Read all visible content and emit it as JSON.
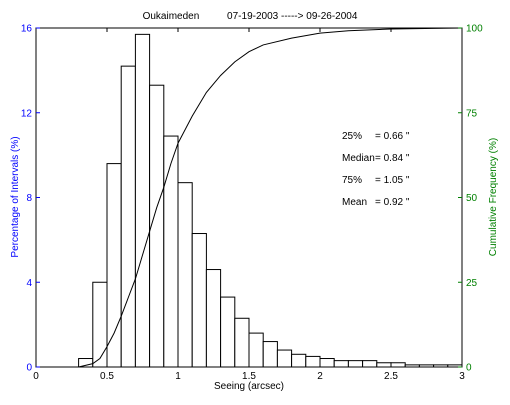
{
  "chart_data": {
    "type": "bar",
    "title": "Oukaimeden          07-19-2003 -----> 09-26-2004",
    "xlabel": "Seeing (arcsec)",
    "ylabel": "Percentage of Intervals (%)",
    "y2label": "Cumulative Frequency (%)",
    "xlim": [
      0,
      3
    ],
    "ylim": [
      0,
      16
    ],
    "y2lim": [
      0,
      100
    ],
    "x_ticks": [
      "0",
      "0.5",
      "1",
      "1.5",
      "2",
      "2.5",
      "3"
    ],
    "y_ticks": [
      "0",
      "4",
      "8",
      "12",
      "16"
    ],
    "y2_ticks": [
      "0",
      "25",
      "50",
      "75",
      "100"
    ],
    "grid": false,
    "colors": {
      "left_axis": "#0000ff",
      "right_axis": "#008000",
      "bars": "#000000",
      "curve": "#000000"
    },
    "series": [
      {
        "type": "bar",
        "bin_width": 0.1,
        "x": [
          0.35,
          0.45,
          0.55,
          0.65,
          0.75,
          0.85,
          0.95,
          1.05,
          1.15,
          1.25,
          1.35,
          1.45,
          1.55,
          1.65,
          1.75,
          1.85,
          1.95,
          2.05,
          2.15,
          2.25,
          2.35,
          2.45,
          2.55,
          2.65,
          2.75,
          2.85,
          2.95
        ],
        "values": [
          0.4,
          4.0,
          9.6,
          14.2,
          15.7,
          13.3,
          10.9,
          8.7,
          6.3,
          4.6,
          3.3,
          2.3,
          1.6,
          1.2,
          0.8,
          0.6,
          0.5,
          0.4,
          0.3,
          0.3,
          0.3,
          0.2,
          0.2,
          0.1,
          0.1,
          0.1,
          0.1
        ]
      },
      {
        "type": "line",
        "axis": "right",
        "x": [
          0.3,
          0.4,
          0.45,
          0.5,
          0.55,
          0.6,
          0.65,
          0.7,
          0.75,
          0.8,
          0.85,
          0.9,
          0.95,
          1.0,
          1.1,
          1.2,
          1.3,
          1.4,
          1.5,
          1.6,
          1.8,
          2.0,
          2.2,
          2.5,
          2.8,
          3.0
        ],
        "values": [
          0,
          1,
          2.5,
          6,
          10,
          15,
          20.5,
          26,
          33,
          40,
          47,
          53,
          60,
          66,
          74,
          81,
          86,
          90,
          93,
          95,
          97,
          98.5,
          99.2,
          99.7,
          99.9,
          100
        ]
      }
    ],
    "annotations": [
      {
        "label": "25%",
        "value": "= 0.66 \""
      },
      {
        "label": "Median",
        "value": "= 0.84 \""
      },
      {
        "label": "75%",
        "value": "= 1.05 \""
      },
      {
        "label": "Mean",
        "value": "= 0.92 \""
      }
    ]
  }
}
